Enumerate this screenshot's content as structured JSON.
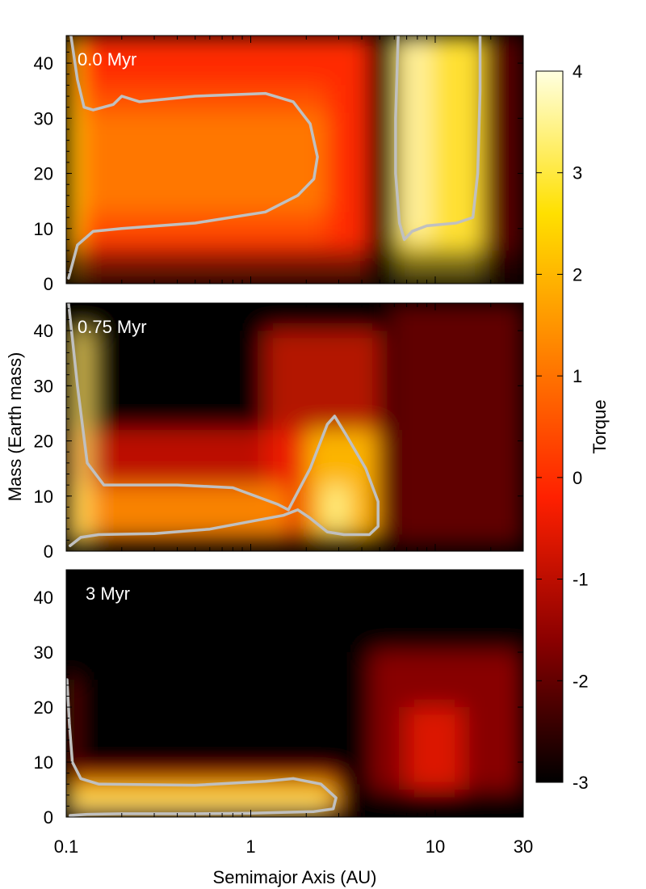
{
  "chart_data": {
    "type": "heatmap",
    "xlabel": "Semimajor Axis (AU)",
    "ylabel": "Mass (Earth mass)",
    "colorbar_label": "Torque",
    "x_scale": "log",
    "xlim": [
      0.1,
      30
    ],
    "x_ticks": [
      0.1,
      1,
      10,
      30
    ],
    "x_tick_labels": [
      "0.1",
      "1",
      "10",
      "30"
    ],
    "ylim": [
      0,
      45
    ],
    "y_ticks": [
      0,
      10,
      20,
      30,
      40
    ],
    "y_tick_labels": [
      "0",
      "10",
      "20",
      "30",
      "40"
    ],
    "colorbar_range": [
      -3,
      4
    ],
    "colorbar_ticks": [
      4,
      3,
      2,
      1,
      0,
      -1,
      -2,
      -3
    ],
    "colorbar_tick_labels": [
      "4",
      "3",
      "2",
      "1",
      "0",
      "-1",
      "-2",
      "-3"
    ],
    "colormap": [
      "#000000",
      "#8b0000",
      "#ff2000",
      "#ff8000",
      "#ffe000",
      "#ffffe0"
    ],
    "contour_color": "#c0c0c0",
    "contour_level": 0,
    "panels": [
      {
        "label": "0.0 Myr",
        "zero_torque_contours": [
          {
            "points": [
              [
                0.103,
                1
              ],
              [
                0.115,
                7
              ],
              [
                0.14,
                9.5
              ],
              [
                0.2,
                10
              ],
              [
                0.5,
                11
              ],
              [
                1.2,
                13
              ],
              [
                1.8,
                16
              ],
              [
                2.2,
                19
              ],
              [
                2.3,
                23
              ],
              [
                2.1,
                29
              ],
              [
                1.7,
                33
              ],
              [
                1.2,
                34.5
              ],
              [
                0.5,
                34
              ],
              [
                0.25,
                33
              ],
              [
                0.2,
                34
              ],
              [
                0.18,
                32.5
              ],
              [
                0.14,
                31.5
              ],
              [
                0.125,
                32
              ],
              [
                0.115,
                37
              ],
              [
                0.106,
                45
              ]
            ]
          },
          {
            "points": [
              [
                6.3,
                45
              ],
              [
                6.1,
                30
              ],
              [
                6.1,
                20
              ],
              [
                6.4,
                11
              ],
              [
                6.8,
                8
              ],
              [
                7.5,
                9.5
              ],
              [
                9,
                10.5
              ],
              [
                13,
                11
              ],
              [
                16,
                12
              ],
              [
                17,
                20
              ],
              [
                17.5,
                35
              ],
              [
                17.5,
                45
              ]
            ]
          }
        ]
      },
      {
        "label": "0.75 Myr",
        "zero_torque_contours": [
          {
            "points": [
              [
                0.103,
                45
              ],
              [
                0.115,
                30
              ],
              [
                0.13,
                16
              ],
              [
                0.16,
                12
              ],
              [
                0.4,
                12
              ],
              [
                0.8,
                11.5
              ],
              [
                1.4,
                8.5
              ],
              [
                1.6,
                7.5
              ],
              [
                2.1,
                15
              ],
              [
                2.6,
                23
              ],
              [
                2.85,
                24.5
              ],
              [
                3.3,
                21
              ],
              [
                4.2,
                15
              ],
              [
                4.9,
                9
              ],
              [
                4.9,
                4.5
              ],
              [
                4.4,
                3
              ],
              [
                3.2,
                3
              ],
              [
                2.6,
                3.5
              ],
              [
                2.1,
                6
              ],
              [
                1.8,
                7.5
              ],
              [
                1.5,
                6.5
              ],
              [
                0.6,
                4
              ],
              [
                0.3,
                3.2
              ],
              [
                0.15,
                3
              ],
              [
                0.12,
                2.5
              ],
              [
                0.105,
                1
              ]
            ]
          }
        ]
      },
      {
        "label": "3 Myr",
        "zero_torque_contours": [
          {
            "points": [
              [
                0.101,
                25
              ],
              [
                0.104,
                17
              ],
              [
                0.108,
                10
              ],
              [
                0.12,
                7
              ],
              [
                0.15,
                6
              ],
              [
                0.5,
                5.8
              ],
              [
                1.2,
                6.5
              ],
              [
                1.7,
                7
              ],
              [
                2.4,
                6
              ],
              [
                2.9,
                3.5
              ],
              [
                2.8,
                1.5
              ],
              [
                2.2,
                1
              ],
              [
                1.0,
                0.7
              ],
              [
                0.5,
                0.6
              ],
              [
                0.2,
                0.6
              ],
              [
                0.13,
                0.5
              ],
              [
                0.105,
                0.3
              ]
            ]
          }
        ]
      }
    ]
  }
}
